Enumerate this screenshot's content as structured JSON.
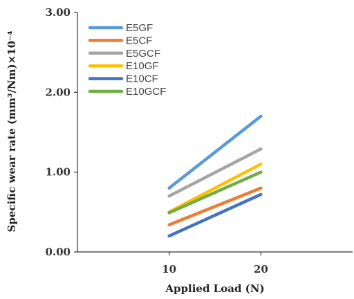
{
  "chart_data": {
    "type": "line",
    "x": [
      10,
      20
    ],
    "xticks": [
      "10",
      "20"
    ],
    "xlim": [
      0,
      30
    ],
    "ylim": [
      0,
      3
    ],
    "yticks": [
      "0.00",
      "1.00",
      "2.00",
      "3.00"
    ],
    "xlabel": "Applied Load (N)",
    "ylabel": "Specific wear rate (mm³/Nm)×10⁻⁴",
    "grid": false,
    "legend_position": "top-left",
    "series": [
      {
        "name": "E5GF",
        "values": [
          0.8,
          1.7
        ],
        "color": "#5B9BD5"
      },
      {
        "name": "E5CF",
        "values": [
          0.34,
          0.8
        ],
        "color": "#ED7D31"
      },
      {
        "name": "E5GCF",
        "values": [
          0.7,
          1.29
        ],
        "color": "#A5A5A5"
      },
      {
        "name": "E10GF",
        "values": [
          0.5,
          1.1
        ],
        "color": "#FFC000"
      },
      {
        "name": "E10CF",
        "values": [
          0.2,
          0.72
        ],
        "color": "#4472C4"
      },
      {
        "name": "E10GCF",
        "values": [
          0.49,
          1.0
        ],
        "color": "#70AD47"
      }
    ]
  }
}
